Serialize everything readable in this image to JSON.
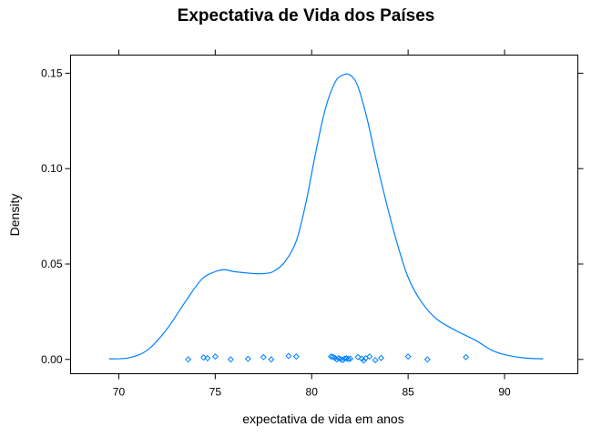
{
  "chart_data": {
    "type": "density",
    "title": "Expectativa de Vida dos Países",
    "xlabel": "expectativa de vida em anos",
    "ylabel": "Density",
    "xlim": [
      67.5,
      93.8
    ],
    "ylim": [
      -0.0075,
      0.1595
    ],
    "x_ticks": [
      70,
      75,
      80,
      85,
      90
    ],
    "x_tick_labels": [
      "70",
      "75",
      "80",
      "85",
      "90"
    ],
    "y_ticks": [
      0.0,
      0.05,
      0.1,
      0.15
    ],
    "y_tick_labels": [
      "0.00",
      "0.05",
      "0.10",
      "0.15"
    ],
    "series_color": "#0080ff",
    "density_curve": [
      [
        69.5,
        0.0003
      ],
      [
        70.5,
        0.0008
      ],
      [
        71.5,
        0.005
      ],
      [
        72.5,
        0.016
      ],
      [
        73.5,
        0.031
      ],
      [
        74.3,
        0.042
      ],
      [
        75.0,
        0.046
      ],
      [
        75.5,
        0.047
      ],
      [
        76.0,
        0.046
      ],
      [
        77.0,
        0.045
      ],
      [
        77.5,
        0.045
      ],
      [
        78.0,
        0.046
      ],
      [
        78.6,
        0.051
      ],
      [
        79.2,
        0.062
      ],
      [
        79.7,
        0.082
      ],
      [
        80.2,
        0.108
      ],
      [
        80.7,
        0.131
      ],
      [
        81.2,
        0.145
      ],
      [
        81.6,
        0.149
      ],
      [
        82.0,
        0.149
      ],
      [
        82.4,
        0.143
      ],
      [
        82.9,
        0.125
      ],
      [
        83.4,
        0.102
      ],
      [
        83.9,
        0.081
      ],
      [
        84.4,
        0.062
      ],
      [
        85.0,
        0.043
      ],
      [
        85.7,
        0.03
      ],
      [
        86.5,
        0.021
      ],
      [
        87.5,
        0.015
      ],
      [
        88.5,
        0.01
      ],
      [
        89.3,
        0.005
      ],
      [
        90.0,
        0.0025
      ],
      [
        91.0,
        0.0008
      ],
      [
        92.0,
        0.0003
      ]
    ],
    "observations": [
      73.6,
      74.4,
      74.6,
      75.0,
      75.8,
      76.7,
      77.5,
      77.9,
      78.8,
      79.2,
      81.0,
      81.1,
      81.2,
      81.3,
      81.4,
      81.5,
      81.6,
      81.7,
      81.8,
      81.9,
      82.0,
      82.4,
      82.6,
      82.7,
      82.8,
      83.0,
      83.3,
      83.6,
      85.0,
      86.0,
      88.0
    ],
    "rug_jitter": [
      0.0,
      0.001,
      0.0006,
      0.0015,
      0.0,
      0.0003,
      0.0012,
      0.0,
      0.0018,
      0.0015,
      0.0015,
      0.0014,
      0.0008,
      0.0,
      0.0006,
      0.0002,
      -0.0004,
      0.0004,
      0.0006,
      0.0002,
      0.0004,
      0.0012,
      0.0004,
      -0.0006,
      0.0006,
      0.0015,
      -0.0004,
      0.0008,
      0.0015,
      0.0,
      0.0012
    ]
  }
}
